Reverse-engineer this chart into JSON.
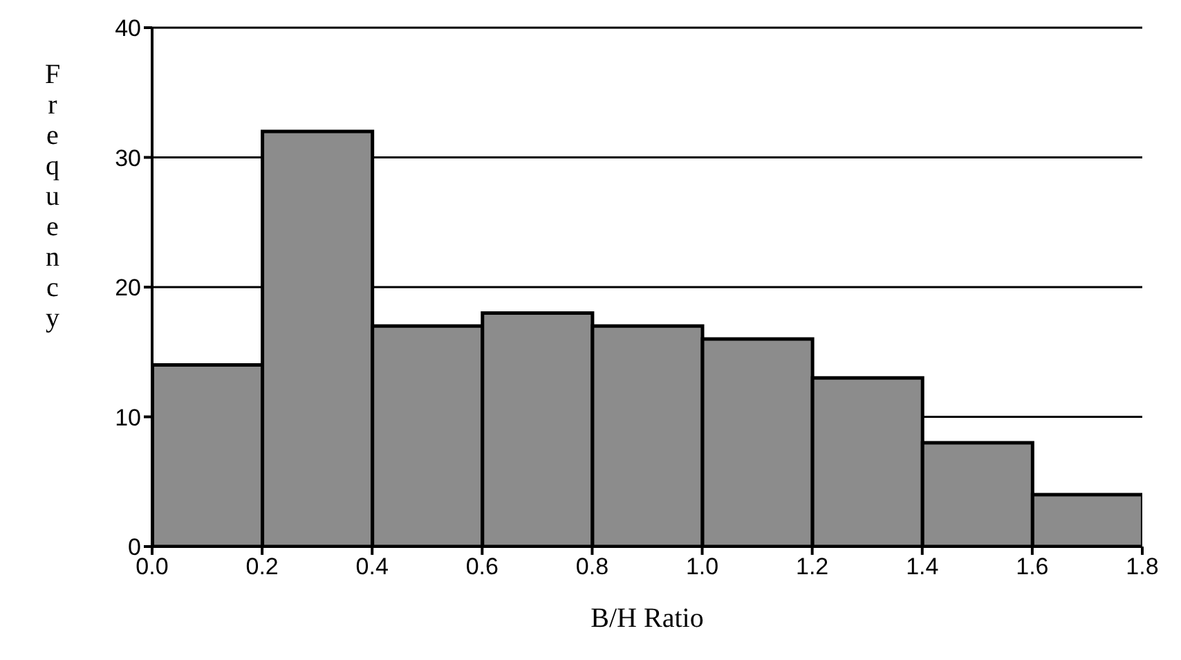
{
  "chart_data": {
    "type": "histogram",
    "xlabel": "B/H Ratio",
    "ylabel": "Frequency",
    "bins": [
      0,
      0.2,
      0.4,
      0.6,
      0.8,
      1.0,
      1.2,
      1.4,
      1.6,
      1.8
    ],
    "values": [
      14,
      32,
      17,
      18,
      17,
      16,
      13,
      8,
      4
    ],
    "color": "#8c8c8c",
    "xlim": [
      0,
      1.8
    ],
    "xticks": [
      {
        "value": 0,
        "label": "0.0"
      },
      {
        "value": 0.2,
        "label": "0.2"
      },
      {
        "value": 0.4,
        "label": "0.4"
      },
      {
        "value": 0.6,
        "label": "0.6"
      },
      {
        "value": 0.8,
        "label": "0.8"
      },
      {
        "value": 1.0,
        "label": "1.0"
      },
      {
        "value": 1.2,
        "label": "1.2"
      },
      {
        "value": 1.4,
        "label": "1.4"
      },
      {
        "value": 1.6,
        "label": "1.6"
      },
      {
        "value": 1.8,
        "label": "1.8"
      }
    ],
    "ylim": [
      0,
      40
    ],
    "yticks": [
      0,
      10,
      20,
      30,
      40
    ],
    "grid": "y"
  }
}
